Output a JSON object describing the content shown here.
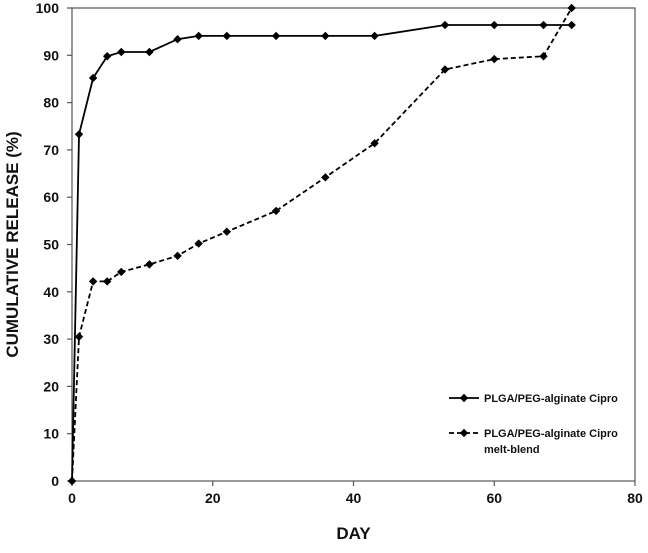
{
  "chart_data": {
    "type": "line",
    "title": "",
    "xlabel": "DAY",
    "ylabel": "CUMULATIVE RELEASE (%)",
    "xlim": [
      0,
      80
    ],
    "ylim": [
      0,
      100
    ],
    "xticks": [
      0,
      20,
      40,
      60,
      80
    ],
    "yticks": [
      0,
      10,
      20,
      30,
      40,
      50,
      60,
      70,
      80,
      90,
      100
    ],
    "grid": false,
    "legend_position": "right",
    "series": [
      {
        "name": "PLGA/PEG-alginate Cipro",
        "line_style": "solid",
        "color": "#000000",
        "marker": "diamond",
        "x": [
          0,
          1,
          3,
          5,
          7,
          11,
          15,
          18,
          22,
          29,
          36,
          43,
          53,
          60,
          67,
          71
        ],
        "y": [
          0,
          73.3,
          85.2,
          89.8,
          90.7,
          90.7,
          93.4,
          94.1,
          94.1,
          94.1,
          94.1,
          94.1,
          96.4,
          96.4,
          96.4,
          96.4
        ]
      },
      {
        "name": "PLGA/PEG-alginate Cipro",
        "name_line2": "melt-blend",
        "line_style": "dashed",
        "color": "#000000",
        "marker": "diamond",
        "x": [
          0,
          1,
          3,
          5,
          7,
          11,
          15,
          18,
          22,
          29,
          36,
          43,
          53,
          60,
          67,
          71
        ],
        "y": [
          0,
          30.5,
          42.2,
          42.2,
          44.2,
          45.8,
          47.6,
          50.2,
          52.7,
          57.1,
          64.2,
          71.4,
          87.0,
          89.2,
          89.8,
          100.0
        ]
      }
    ]
  }
}
